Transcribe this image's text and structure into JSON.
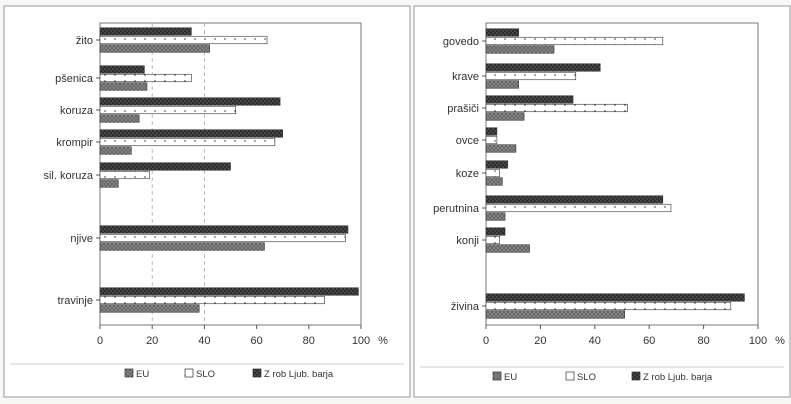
{
  "chart_data": [
    {
      "type": "bar",
      "orientation": "horizontal",
      "categories": [
        "žito",
        "pšenica",
        "koruza",
        "krompir",
        "sil. koruza",
        "njive",
        "travinje"
      ],
      "series": [
        {
          "name": "Z rob Ljub. barja",
          "values": [
            35,
            17,
            69,
            70,
            50,
            95,
            99
          ]
        },
        {
          "name": "SLO",
          "values": [
            64,
            35,
            52,
            67,
            19,
            94,
            86
          ]
        },
        {
          "name": "EU",
          "values": [
            42,
            18,
            15,
            12,
            7,
            63,
            38
          ]
        }
      ],
      "x_ticks": [
        "0",
        "20",
        "40",
        "60",
        "80",
        "100"
      ],
      "x_unit": "%",
      "xlim": [
        0,
        100
      ],
      "grid": "vertical dashed at 20 and 40",
      "legend": [
        "EU",
        "SLO",
        "Z rob Ljub. barja"
      ],
      "legend_position": "bottom",
      "colors": {
        "Z rob Ljub. barja": "#2e2e2e",
        "SLO": "#ffffff",
        "EU": "#8a8a8a"
      }
    },
    {
      "type": "bar",
      "orientation": "horizontal",
      "categories": [
        "govedo",
        "krave",
        "prašiči",
        "ovce",
        "koze",
        "perutnina",
        "konji",
        "živina"
      ],
      "series": [
        {
          "name": "Z rob Ljub. barja",
          "values": [
            12,
            42,
            32,
            4,
            8,
            65,
            7,
            95
          ]
        },
        {
          "name": "SLO",
          "values": [
            65,
            33,
            52,
            4,
            5,
            68,
            5,
            90
          ]
        },
        {
          "name": "EU",
          "values": [
            25,
            12,
            14,
            11,
            6,
            7,
            16,
            51
          ]
        }
      ],
      "x_ticks": [
        "0",
        "20",
        "40",
        "60",
        "80",
        "100"
      ],
      "x_unit": "%",
      "xlim": [
        0,
        100
      ],
      "grid": "none",
      "legend": [
        "EU",
        "SLO",
        "Z rob Ljub. barja"
      ],
      "legend_position": "bottom",
      "colors": {
        "Z rob Ljub. barja": "#2e2e2e",
        "SLO": "#ffffff",
        "EU": "#8a8a8a"
      }
    }
  ]
}
